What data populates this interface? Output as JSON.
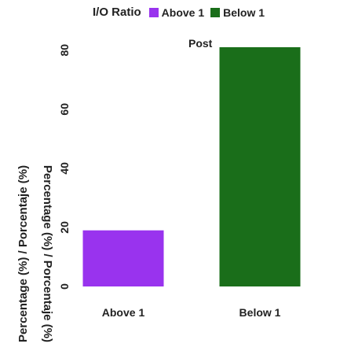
{
  "legend": {
    "title": "I/O Ratio",
    "items": [
      {
        "label": "Above 1",
        "color": "#9933ee"
      },
      {
        "label": "Below 1",
        "color": "#1a6e1a"
      }
    ]
  },
  "panel_title": "Post",
  "ylabel_main": "Percentage (%) / Porcentaje (%)",
  "ylabel_mirror": "Percentage (%) / Porcentaje (%)",
  "chart_data": {
    "type": "bar",
    "categories": [
      "Above 1",
      "Below 1"
    ],
    "values": [
      19,
      81
    ],
    "colors": [
      "#9933ee",
      "#1a6e1a"
    ],
    "title": "Post",
    "ylabel": "Percentage (%) / Porcentaje (%)",
    "ylim": [
      0,
      81
    ],
    "yticks": [
      0,
      20,
      40,
      60,
      80
    ],
    "grid": false,
    "legend_position": "top"
  }
}
